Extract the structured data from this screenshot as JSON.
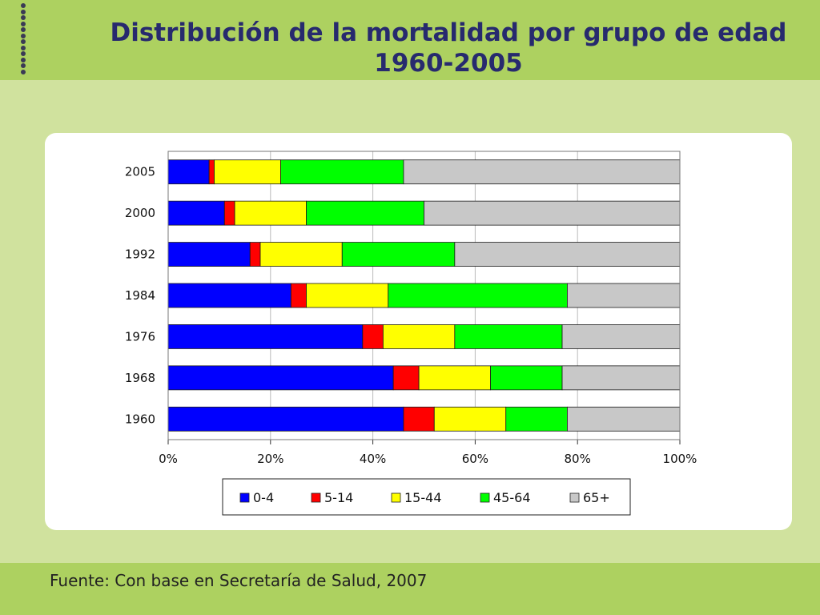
{
  "slide": {
    "title_line1": "Distribución de la mortalidad por grupo de edad",
    "title_line2": "1960-2005",
    "source": "Fuente: Con base en Secretaría de Salud, 2007"
  },
  "chart_data": {
    "type": "bar",
    "orientation": "horizontal",
    "stacked": "percent",
    "categories": [
      "2005",
      "2000",
      "1992",
      "1984",
      "1976",
      "1968",
      "1960"
    ],
    "series": [
      {
        "name": "0-4",
        "color": "#0000ff",
        "values": [
          8,
          11,
          16,
          24,
          38,
          44,
          46
        ]
      },
      {
        "name": "5-14",
        "color": "#ff0000",
        "values": [
          1,
          2,
          2,
          3,
          4,
          5,
          6
        ]
      },
      {
        "name": "15-44",
        "color": "#ffff00",
        "values": [
          13,
          14,
          16,
          16,
          14,
          14,
          14
        ]
      },
      {
        "name": "45-64",
        "color": "#00ff00",
        "values": [
          24,
          23,
          22,
          35,
          21,
          14,
          12
        ]
      },
      {
        "name": "65+",
        "color": "#c8c8c8",
        "values": [
          54,
          50,
          44,
          22,
          23,
          23,
          22
        ]
      }
    ],
    "xlim": [
      0,
      100
    ],
    "xticks": [
      "0%",
      "20%",
      "40%",
      "60%",
      "80%",
      "100%"
    ],
    "grid": true,
    "legend_position": "bottom"
  }
}
